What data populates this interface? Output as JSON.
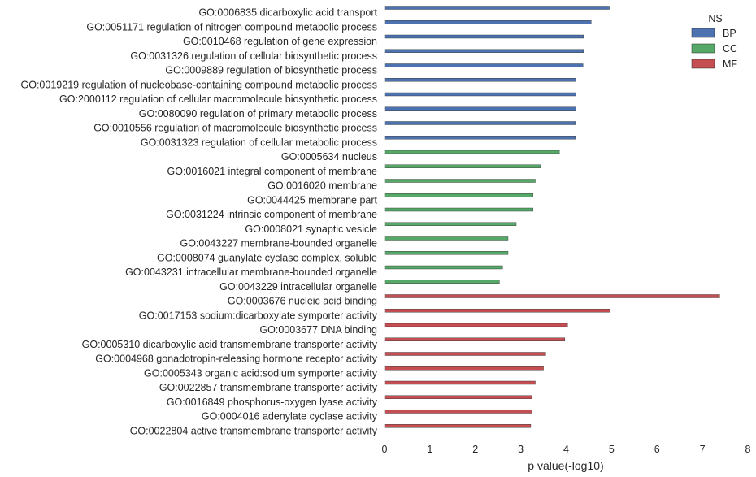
{
  "chart_data": {
    "type": "bar",
    "orientation": "horizontal",
    "xlabel": "p value(-log10)",
    "xlim": [
      0,
      8
    ],
    "xticks": [
      0,
      1,
      2,
      3,
      4,
      5,
      6,
      7,
      8
    ],
    "grid": false,
    "legend": {
      "title": "NS",
      "placement": "top-right",
      "entries": [
        {
          "name": "BP",
          "color": "#4c72b0"
        },
        {
          "name": "CC",
          "color": "#55a868"
        },
        {
          "name": "MF",
          "color": "#c44e52"
        }
      ]
    },
    "bars": [
      {
        "label": "GO:0006835 dicarboxylic acid transport",
        "value": 4.95,
        "ns": "BP"
      },
      {
        "label": "GO:0051171 regulation of nitrogen compound metabolic process",
        "value": 4.55,
        "ns": "BP"
      },
      {
        "label": "GO:0010468 regulation of gene expression",
        "value": 4.38,
        "ns": "BP"
      },
      {
        "label": "GO:0031326 regulation of cellular biosynthetic process",
        "value": 4.38,
        "ns": "BP"
      },
      {
        "label": "GO:0009889 regulation of biosynthetic process",
        "value": 4.37,
        "ns": "BP"
      },
      {
        "label": "GO:0019219 regulation of nucleobase-containing compound metabolic process",
        "value": 4.21,
        "ns": "BP"
      },
      {
        "label": "GO:2000112 regulation of cellular macromolecule biosynthetic process",
        "value": 4.21,
        "ns": "BP"
      },
      {
        "label": "GO:0080090 regulation of primary metabolic process",
        "value": 4.21,
        "ns": "BP"
      },
      {
        "label": "GO:0010556 regulation of macromolecule biosynthetic process",
        "value": 4.2,
        "ns": "BP"
      },
      {
        "label": "GO:0031323 regulation of cellular metabolic process",
        "value": 4.2,
        "ns": "BP"
      },
      {
        "label": "GO:0005634 nucleus",
        "value": 3.85,
        "ns": "CC"
      },
      {
        "label": "GO:0016021 integral component of membrane",
        "value": 3.43,
        "ns": "CC"
      },
      {
        "label": "GO:0016020 membrane",
        "value": 3.32,
        "ns": "CC"
      },
      {
        "label": "GO:0044425 membrane part",
        "value": 3.27,
        "ns": "CC"
      },
      {
        "label": "GO:0031224 intrinsic component of membrane",
        "value": 3.27,
        "ns": "CC"
      },
      {
        "label": "GO:0008021 synaptic vesicle",
        "value": 2.9,
        "ns": "CC"
      },
      {
        "label": "GO:0043227 membrane-bounded organelle",
        "value": 2.72,
        "ns": "CC"
      },
      {
        "label": "GO:0008074 guanylate cyclase complex, soluble",
        "value": 2.72,
        "ns": "CC"
      },
      {
        "label": "GO:0043231 intracellular membrane-bounded organelle",
        "value": 2.6,
        "ns": "CC"
      },
      {
        "label": "GO:0043229 intracellular organelle",
        "value": 2.53,
        "ns": "CC"
      },
      {
        "label": "GO:0003676 nucleic acid binding",
        "value": 7.38,
        "ns": "MF"
      },
      {
        "label": "GO:0017153 sodium:dicarboxylate symporter activity",
        "value": 4.96,
        "ns": "MF"
      },
      {
        "label": "GO:0003677 DNA binding",
        "value": 4.03,
        "ns": "MF"
      },
      {
        "label": "GO:0005310 dicarboxylic acid transmembrane transporter activity",
        "value": 3.97,
        "ns": "MF"
      },
      {
        "label": "GO:0004968 gonadotropin-releasing hormone receptor activity",
        "value": 3.55,
        "ns": "MF"
      },
      {
        "label": "GO:0005343 organic acid:sodium symporter activity",
        "value": 3.5,
        "ns": "MF"
      },
      {
        "label": "GO:0022857 transmembrane transporter activity",
        "value": 3.32,
        "ns": "MF"
      },
      {
        "label": "GO:0016849 phosphorus-oxygen lyase activity",
        "value": 3.25,
        "ns": "MF"
      },
      {
        "label": "GO:0004016 adenylate cyclase activity",
        "value": 3.25,
        "ns": "MF"
      },
      {
        "label": "GO:0022804 active transmembrane transporter activity",
        "value": 3.22,
        "ns": "MF"
      }
    ]
  }
}
